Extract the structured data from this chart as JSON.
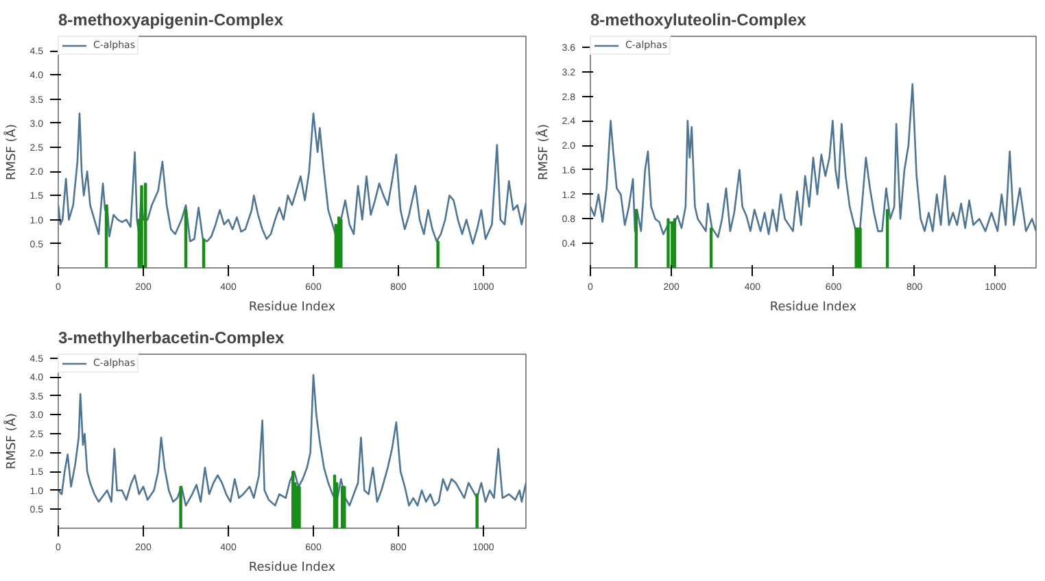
{
  "chart_data": [
    {
      "type": "line",
      "title": "8-methoxyapigenin-Complex",
      "xlabel": "Residue Index",
      "ylabel": "RMSF (Å)",
      "legend": "top left",
      "grid": false,
      "xlim": [
        0,
        1100
      ],
      "ylim": [
        0,
        4.8
      ],
      "xticks": [
        0,
        200,
        400,
        600,
        800,
        1000
      ],
      "yticks": [
        {
          "value": 0.5,
          "label": "0.5"
        },
        {
          "value": 1.0,
          "label": "1.0"
        },
        {
          "value": 1.5,
          "label": "1.5"
        },
        {
          "value": 2.0,
          "label": "2.0"
        },
        {
          "value": 2.5,
          "label": "2.5"
        },
        {
          "value": 3.0,
          "label": "3.0"
        },
        {
          "value": 3.5,
          "label": "3.5"
        },
        {
          "value": 4.0,
          "label": "4.0"
        },
        {
          "value": 4.5,
          "label": "4.5"
        }
      ],
      "series": [
        {
          "name": "C-alphas",
          "type": "line",
          "color": "#4e7594",
          "x": [
            0,
            5,
            10,
            18,
            25,
            35,
            45,
            50,
            55,
            60,
            68,
            75,
            85,
            95,
            105,
            110,
            115,
            120,
            130,
            140,
            150,
            160,
            170,
            180,
            185,
            190,
            195,
            200,
            210,
            220,
            235,
            245,
            255,
            265,
            275,
            290,
            300,
            310,
            320,
            330,
            340,
            350,
            360,
            370,
            380,
            390,
            400,
            410,
            420,
            430,
            440,
            455,
            460,
            470,
            480,
            490,
            500,
            510,
            520,
            530,
            540,
            550,
            560,
            570,
            580,
            590,
            600,
            610,
            615,
            625,
            635,
            645,
            655,
            665,
            675,
            685,
            695,
            705,
            715,
            725,
            735,
            745,
            755,
            765,
            775,
            785,
            795,
            805,
            815,
            825,
            840,
            850,
            860,
            870,
            880,
            890,
            900,
            910,
            920,
            930,
            940,
            950,
            960,
            975,
            985,
            995,
            1005,
            1020,
            1032,
            1040,
            1050,
            1060,
            1070,
            1080,
            1090,
            1100
          ],
          "values": [
            1.3,
            0.9,
            1.0,
            1.85,
            1.0,
            1.3,
            2.2,
            3.2,
            2.0,
            1.5,
            2.0,
            1.3,
            1.0,
            0.7,
            1.75,
            1.2,
            1.3,
            0.65,
            1.1,
            1.0,
            0.95,
            1.0,
            0.85,
            2.4,
            1.0,
            0.7,
            1.5,
            1.0,
            1.0,
            1.3,
            1.6,
            2.2,
            1.3,
            0.8,
            0.7,
            1.0,
            1.3,
            0.55,
            0.6,
            1.25,
            0.6,
            0.55,
            0.65,
            0.9,
            1.2,
            0.9,
            1.0,
            0.8,
            1.05,
            0.75,
            0.8,
            1.2,
            1.5,
            1.1,
            0.8,
            0.6,
            0.7,
            1.0,
            1.25,
            1.0,
            1.5,
            1.3,
            1.6,
            1.9,
            1.4,
            2.0,
            3.2,
            2.4,
            2.9,
            2.0,
            1.2,
            0.9,
            0.6,
            1.0,
            1.4,
            0.9,
            0.7,
            1.7,
            1.0,
            1.9,
            1.1,
            1.4,
            1.75,
            1.5,
            1.3,
            1.8,
            2.35,
            1.2,
            0.8,
            1.1,
            1.7,
            1.0,
            0.7,
            1.2,
            0.8,
            0.55,
            0.7,
            1.0,
            1.5,
            1.4,
            1.0,
            0.7,
            1.0,
            0.5,
            0.8,
            1.2,
            0.6,
            0.9,
            2.55,
            1.0,
            0.9,
            1.8,
            1.2,
            1.3,
            0.9,
            1.35
          ]
        },
        {
          "type": "bar",
          "color": "#1a8c1a",
          "x": [
            113,
            190,
            196,
            205,
            300,
            342,
            653,
            660,
            665,
            893
          ],
          "values": [
            1.3,
            1.0,
            1.7,
            1.75,
            1.2,
            0.6,
            0.9,
            1.05,
            1.0,
            0.55
          ]
        }
      ]
    },
    {
      "type": "line",
      "title": "8-methoxyluteolin-Complex",
      "xlabel": "Residue Index",
      "ylabel": "RMSF (Å)",
      "legend": "top left",
      "grid": false,
      "xlim": [
        0,
        1100
      ],
      "ylim": [
        0,
        3.78
      ],
      "xticks": [
        0,
        200,
        400,
        600,
        800,
        1000
      ],
      "yticks": [
        0.4,
        0.8,
        1.2,
        1.6,
        {
          "value": 2.0,
          "label": "2.0"
        },
        2.4,
        2.8,
        3.2,
        3.6
      ],
      "series": [
        {
          "name": "C-alphas",
          "type": "line",
          "color": "#4e7594",
          "x": [
            0,
            10,
            20,
            30,
            40,
            50,
            55,
            65,
            75,
            85,
            95,
            105,
            110,
            115,
            125,
            135,
            142,
            150,
            160,
            170,
            180,
            195,
            205,
            215,
            225,
            235,
            240,
            245,
            250,
            258,
            265,
            275,
            285,
            290,
            300,
            315,
            325,
            335,
            345,
            355,
            368,
            375,
            385,
            395,
            405,
            420,
            430,
            440,
            450,
            460,
            470,
            480,
            490,
            500,
            510,
            520,
            530,
            540,
            550,
            560,
            570,
            580,
            590,
            598,
            605,
            612,
            620,
            630,
            640,
            655,
            665,
            675,
            680,
            690,
            700,
            710,
            720,
            730,
            740,
            750,
            755,
            765,
            775,
            785,
            795,
            805,
            815,
            825,
            835,
            845,
            855,
            865,
            875,
            885,
            895,
            905,
            915,
            925,
            935,
            945,
            960,
            975,
            990,
            1005,
            1015,
            1025,
            1035,
            1045,
            1060,
            1075,
            1090,
            1100
          ],
          "values": [
            1.0,
            0.85,
            1.2,
            0.75,
            1.3,
            2.4,
            2.0,
            1.3,
            1.2,
            0.7,
            1.0,
            1.45,
            0.6,
            0.95,
            0.6,
            1.6,
            1.9,
            1.0,
            0.8,
            0.75,
            0.55,
            0.75,
            0.7,
            0.85,
            0.65,
            1.0,
            2.4,
            1.8,
            2.3,
            1.0,
            0.8,
            0.7,
            0.6,
            1.05,
            0.65,
            0.5,
            0.8,
            1.3,
            0.6,
            0.9,
            1.6,
            1.0,
            0.85,
            0.6,
            0.95,
            0.6,
            0.9,
            0.55,
            0.95,
            0.6,
            1.2,
            0.8,
            0.7,
            0.6,
            1.25,
            0.7,
            1.5,
            1.0,
            1.8,
            1.2,
            1.85,
            1.5,
            1.8,
            2.4,
            1.6,
            1.3,
            2.35,
            1.5,
            1.0,
            0.6,
            0.6,
            1.4,
            1.8,
            1.3,
            0.9,
            0.6,
            0.6,
            1.3,
            0.8,
            1.0,
            2.35,
            0.8,
            1.6,
            2.0,
            3.0,
            1.5,
            0.8,
            0.6,
            0.9,
            0.6,
            1.2,
            0.7,
            1.5,
            0.7,
            0.9,
            0.7,
            1.05,
            0.65,
            1.1,
            0.7,
            0.8,
            0.6,
            0.9,
            0.6,
            1.2,
            0.7,
            1.9,
            0.7,
            1.3,
            0.6,
            0.8,
            0.6
          ]
        },
        {
          "type": "bar",
          "color": "#1a8c1a",
          "x": [
            113,
            192,
            202,
            208,
            298,
            656,
            661,
            666,
            733
          ],
          "values": [
            0.95,
            0.8,
            0.75,
            0.8,
            0.65,
            0.65,
            0.65,
            0.65,
            0.95
          ]
        }
      ]
    },
    {
      "type": "line",
      "title": "3-methylherbacetin-Complex",
      "xlabel": "Residue Index",
      "ylabel": "RMSF (Å)",
      "legend": "top left",
      "grid": false,
      "xlim": [
        0,
        1100
      ],
      "ylim": [
        0,
        4.6
      ],
      "xticks": [
        0,
        200,
        400,
        600,
        800,
        1000
      ],
      "yticks": [
        {
          "value": 0.5,
          "label": "0.5"
        },
        {
          "value": 1.0,
          "label": "1.0"
        },
        {
          "value": 1.5,
          "label": "1.5"
        },
        {
          "value": 2.0,
          "label": "2.0"
        },
        {
          "value": 2.5,
          "label": "2.5"
        },
        {
          "value": 3.0,
          "label": "3.0"
        },
        {
          "value": 3.5,
          "label": "3.5"
        },
        {
          "value": 4.0,
          "label": "4.0"
        },
        {
          "value": 4.5,
          "label": "4.5"
        }
      ],
      "series": [
        {
          "name": "C-alphas",
          "type": "line",
          "color": "#4e7594",
          "x": [
            0,
            8,
            15,
            22,
            30,
            40,
            48,
            52,
            58,
            62,
            68,
            75,
            85,
            95,
            105,
            115,
            125,
            132,
            138,
            150,
            160,
            172,
            180,
            190,
            200,
            210,
            225,
            235,
            242,
            250,
            260,
            270,
            280,
            290,
            300,
            315,
            325,
            335,
            345,
            355,
            365,
            375,
            385,
            395,
            405,
            415,
            425,
            435,
            450,
            460,
            472,
            480,
            485,
            495,
            510,
            520,
            535,
            545,
            555,
            565,
            575,
            585,
            593,
            600,
            607,
            615,
            625,
            635,
            645,
            655,
            665,
            675,
            685,
            695,
            705,
            712,
            720,
            730,
            740,
            750,
            760,
            775,
            785,
            795,
            805,
            815,
            825,
            835,
            845,
            855,
            865,
            875,
            885,
            895,
            905,
            915,
            925,
            935,
            945,
            955,
            965,
            975,
            985,
            995,
            1005,
            1015,
            1025,
            1035,
            1045,
            1060,
            1075,
            1085,
            1090,
            1100
          ],
          "values": [
            1.0,
            0.9,
            1.5,
            1.95,
            1.1,
            1.7,
            2.4,
            3.55,
            2.2,
            2.5,
            1.5,
            1.2,
            0.9,
            0.7,
            0.85,
            1.0,
            0.7,
            2.1,
            1.0,
            1.0,
            0.75,
            1.2,
            1.4,
            0.9,
            1.1,
            0.75,
            1.0,
            1.5,
            2.4,
            1.6,
            1.0,
            0.7,
            0.8,
            1.1,
            0.6,
            0.9,
            1.15,
            0.7,
            1.6,
            0.9,
            1.2,
            1.4,
            1.2,
            0.9,
            0.7,
            1.3,
            0.8,
            0.9,
            1.1,
            0.8,
            1.4,
            2.85,
            1.0,
            0.75,
            0.6,
            0.9,
            0.8,
            1.25,
            1.5,
            1.1,
            1.3,
            1.6,
            2.0,
            4.05,
            3.0,
            2.3,
            1.6,
            1.2,
            0.9,
            0.7,
            1.3,
            0.8,
            0.6,
            0.9,
            1.2,
            2.4,
            1.0,
            0.9,
            1.6,
            0.7,
            1.0,
            1.6,
            2.1,
            2.8,
            1.5,
            1.1,
            0.6,
            0.8,
            0.6,
            1.0,
            0.7,
            0.9,
            0.6,
            0.7,
            1.3,
            1.0,
            1.3,
            1.2,
            1.0,
            0.8,
            1.2,
            1.0,
            0.8,
            1.2,
            0.7,
            1.0,
            0.8,
            2.1,
            0.8,
            0.9,
            0.75,
            1.0,
            0.7,
            1.2
          ]
        },
        {
          "type": "bar",
          "color": "#1a8c1a",
          "x": [
            288,
            552,
            557,
            562,
            567,
            650,
            655,
            668,
            673,
            985
          ],
          "values": [
            1.1,
            1.5,
            1.2,
            1.1,
            1.1,
            1.4,
            1.2,
            1.1,
            1.1,
            0.9
          ]
        }
      ]
    }
  ]
}
